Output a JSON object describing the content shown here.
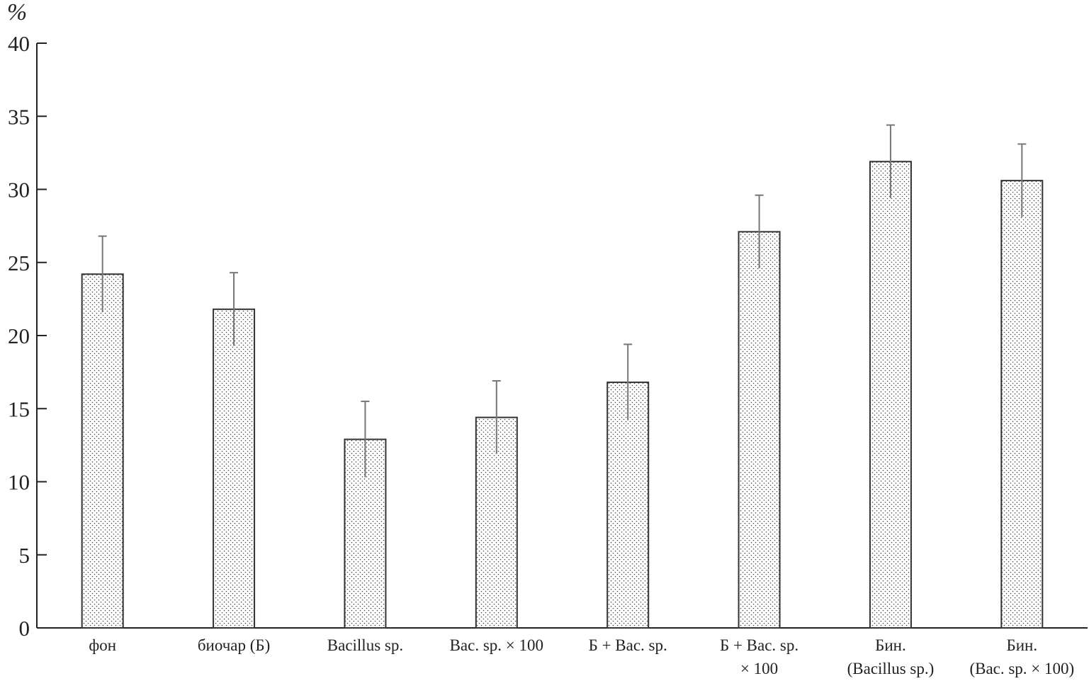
{
  "chart_data": {
    "type": "bar",
    "y_label": "%",
    "categories": [
      "фон",
      "биочар (Б)",
      "Bacillus sp.",
      "Bac. sp. × 100",
      "Б + Bac. sp.",
      "Б + Bac. sp.\n× 100",
      "Бин.\n(Bacillus sp.)",
      "Бин.\n(Bac. sp. × 100)"
    ],
    "values": [
      24.2,
      21.8,
      12.9,
      14.4,
      16.8,
      27.1,
      31.9,
      30.6
    ],
    "errors": [
      2.6,
      2.5,
      2.6,
      2.5,
      2.6,
      2.5,
      2.5,
      2.5
    ],
    "color": "#333333",
    "error_color": "#777777",
    "ylim": [
      0,
      40
    ],
    "yticks": [
      0,
      5,
      10,
      15,
      20,
      25,
      30,
      35,
      40
    ],
    "grid": false
  }
}
